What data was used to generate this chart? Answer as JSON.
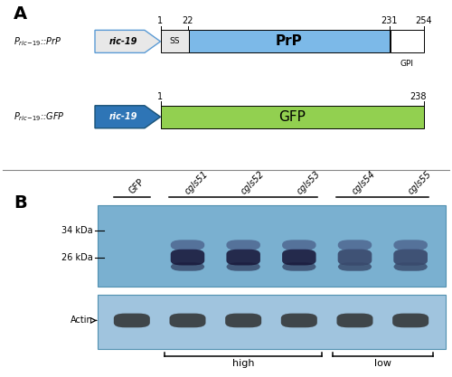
{
  "panel_A": {
    "PrP_arrow_color_light": "#b8d4eb",
    "PrP_arrow_edge_color": "#5b9bd5",
    "PrP_main_color": "#7cb9e8",
    "PrP_ss_color": "#e8e8e8",
    "PrP_gpi_color": "#ffffff",
    "GFP_arrow_color": "#2e75b6",
    "GFP_main_color": "#92d050",
    "numbers_PrP": [
      "1",
      "22",
      "231",
      "254"
    ],
    "numbers_GFP": [
      "1",
      "238"
    ]
  },
  "panel_B": {
    "upper_blot_color": "#7ab0d0",
    "lower_blot_color": "#a0c4de",
    "lane_labels": [
      "GFP",
      "cgls51",
      "cgls52",
      "cgls53",
      "cgls54",
      "cgls55"
    ],
    "marker_34_label": "34 kDa",
    "marker_26_label": "26 kDa",
    "actin_label": "Actin",
    "high_label": "high",
    "low_label": "low"
  }
}
